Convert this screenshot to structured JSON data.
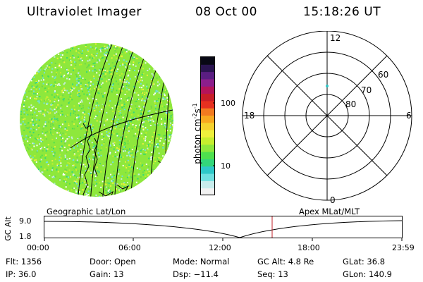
{
  "header": {
    "instrument": "Ultraviolet Imager",
    "date": "08 Oct 00",
    "time": "15:18:26 UT"
  },
  "colorbar": {
    "unit_text": "photon cm",
    "unit_exp1": "-2",
    "unit_mid": "s",
    "unit_exp2": "-1",
    "ticks": [
      {
        "label": "100",
        "value": 100
      },
      {
        "label": "10",
        "value": 10
      }
    ],
    "colors": [
      "#f2f2f2",
      "#c8ecec",
      "#6fe0e0",
      "#2ec8c8",
      "#33d67a",
      "#4ee04e",
      "#8ee83c",
      "#c6ee2e",
      "#eef03c",
      "#f6d22e",
      "#f8a820",
      "#f27a20",
      "#e63020",
      "#c81e28",
      "#b4145a",
      "#8c1e8c",
      "#5a1e82",
      "#2a1450",
      "#080814"
    ]
  },
  "polar": {
    "clock_labels": [
      {
        "text": "12",
        "pos": "top"
      },
      {
        "text": "18",
        "pos": "left"
      },
      {
        "text": "6",
        "pos": "right"
      },
      {
        "text": "0",
        "pos": "bottom"
      }
    ],
    "lat_labels": [
      "60",
      "70",
      "80"
    ]
  },
  "captions": {
    "left": "Geographic Lat/Lon",
    "right": "Apex MLat/MLT"
  },
  "altplot": {
    "ylabel": "GC Alt",
    "yticks": [
      "9.0",
      "1.8"
    ],
    "xticks": [
      "00:00",
      "06:00",
      "12:00",
      "18:00",
      "23:59"
    ],
    "current_time_marker": "15:18"
  },
  "info": {
    "flt": "Flt: 1356",
    "ip": "IP: 36.0",
    "door": "Door: Open",
    "gain": "Gain: 13",
    "mode": "Mode: Normal",
    "dsp": "Dsp:  −11.4",
    "gcalt": "GC Alt: 4.8 Re",
    "seq": "Seq: 13",
    "glat": "GLat:  36.8",
    "glon": "GLon: 140.9"
  }
}
